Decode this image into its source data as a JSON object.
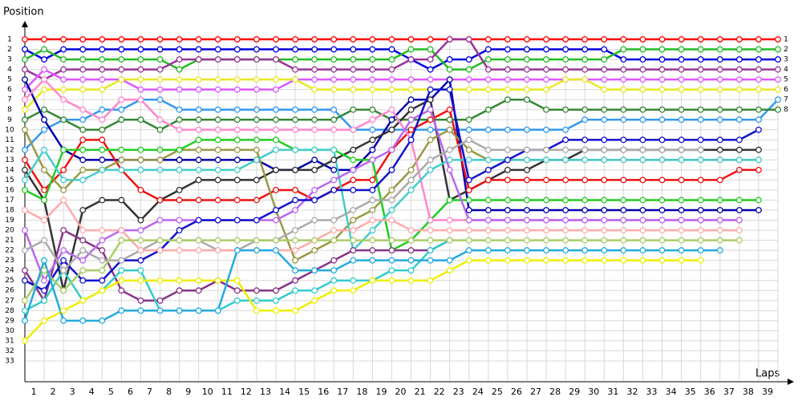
{
  "chart_data": {
    "type": "line",
    "y_label": "Position",
    "x_label": "Laps",
    "x": [
      0,
      1,
      2,
      3,
      4,
      5,
      6,
      7,
      8,
      9,
      10,
      11,
      12,
      13,
      14,
      15,
      16,
      17,
      18,
      19,
      20,
      21,
      22,
      23,
      24,
      25,
      26,
      27,
      28,
      29,
      30,
      31,
      32,
      33,
      34,
      35,
      36,
      37,
      38,
      39
    ],
    "xlim": [
      0,
      39
    ],
    "xticks": [
      1,
      2,
      3,
      4,
      5,
      6,
      7,
      8,
      9,
      10,
      11,
      12,
      13,
      14,
      15,
      16,
      17,
      18,
      19,
      20,
      21,
      22,
      23,
      24,
      25,
      26,
      27,
      28,
      29,
      30,
      31,
      32,
      33,
      34,
      35,
      36,
      37,
      38,
      39
    ],
    "ylim": [
      0,
      35
    ],
    "y_inverted": true,
    "yticks": [
      1,
      2,
      3,
      4,
      5,
      6,
      7,
      8,
      9,
      10,
      11,
      12,
      13,
      14,
      15,
      16,
      17,
      18,
      19,
      20,
      21,
      22,
      23,
      24,
      25,
      26,
      27,
      28,
      29,
      30,
      31,
      32,
      33
    ],
    "y2lim": [
      0,
      35
    ],
    "y2ticks": [
      1,
      2,
      3,
      4,
      5,
      6,
      7,
      8
    ],
    "grid": true,
    "series": [
      {
        "color": "#ff0000",
        "values": [
          1,
          1,
          1,
          1,
          1,
          1,
          1,
          1,
          1,
          1,
          1,
          1,
          1,
          1,
          1,
          1,
          1,
          1,
          1,
          1,
          1,
          1,
          1,
          1,
          1,
          1,
          1,
          1,
          1,
          1,
          1,
          1,
          1,
          1,
          1,
          1,
          1,
          1,
          1,
          1
        ]
      },
      {
        "color": "#0000dd",
        "values": [
          2,
          3,
          2,
          2,
          2,
          2,
          2,
          2,
          2,
          2,
          2,
          2,
          2,
          2,
          2,
          2,
          2,
          2,
          2,
          2,
          3,
          4,
          3,
          3,
          2,
          2,
          2,
          2,
          2,
          2,
          2,
          3,
          3,
          3,
          3,
          3,
          3,
          3,
          3,
          3
        ]
      },
      {
        "color": "#22bb22",
        "values": [
          3,
          2,
          3,
          3,
          3,
          3,
          3,
          3,
          4,
          3,
          3,
          3,
          3,
          3,
          3,
          3,
          3,
          3,
          3,
          3,
          2,
          2,
          4,
          4,
          3,
          3,
          3,
          3,
          3,
          3,
          3,
          2,
          2,
          2,
          2,
          2,
          2,
          2,
          2,
          2
        ]
      },
      {
        "color": "#993399",
        "values": [
          4,
          5,
          4,
          4,
          4,
          4,
          4,
          4,
          3,
          3,
          3,
          3,
          3,
          3,
          4,
          4,
          4,
          4,
          4,
          4,
          3,
          3,
          1,
          1,
          4,
          4,
          4,
          4,
          4,
          4,
          4,
          4,
          4,
          4,
          4,
          4,
          4,
          4,
          4,
          4
        ]
      },
      {
        "color": "#dd55ff",
        "values": [
          6,
          4,
          5,
          5,
          5,
          5,
          6,
          6,
          6,
          6,
          6,
          6,
          6,
          6,
          5,
          5,
          5,
          5,
          5,
          5,
          5,
          5,
          5,
          5,
          5,
          5,
          5,
          5,
          5,
          5,
          5,
          5,
          5,
          5,
          5,
          5,
          5,
          5,
          5,
          5
        ]
      },
      {
        "color": "#e8e822",
        "values": [
          8,
          6,
          6,
          6,
          6,
          5,
          5,
          5,
          5,
          5,
          5,
          5,
          5,
          5,
          5,
          6,
          6,
          6,
          6,
          6,
          6,
          6,
          6,
          6,
          6,
          6,
          6,
          6,
          5,
          5,
          6,
          6,
          6,
          6,
          6,
          6,
          6,
          6,
          6,
          6
        ]
      },
      {
        "color": "#3399ee",
        "values": [
          12,
          10,
          9,
          9,
          8,
          8,
          7,
          7,
          8,
          8,
          8,
          8,
          8,
          8,
          8,
          8,
          8,
          10,
          10,
          10,
          10,
          10,
          10,
          10,
          10,
          10,
          10,
          10,
          10,
          9,
          9,
          9,
          9,
          9,
          9,
          9,
          9,
          9,
          9,
          7
        ]
      },
      {
        "color": "#338833",
        "values": [
          9,
          8,
          9,
          10,
          10,
          9,
          9,
          10,
          9,
          9,
          9,
          9,
          9,
          9,
          9,
          9,
          9,
          8,
          8,
          9,
          9,
          9,
          9,
          9,
          8,
          7,
          7,
          8,
          8,
          8,
          8,
          8,
          8,
          8,
          8,
          8,
          8,
          8,
          8,
          8
        ]
      },
      {
        "color": "#0000aa",
        "values": [
          5,
          9,
          12,
          13,
          13,
          13,
          13,
          13,
          13,
          13,
          13,
          13,
          13,
          14,
          14,
          13,
          14,
          14,
          12,
          9,
          7,
          7,
          5,
          18,
          18,
          18,
          18,
          18,
          18,
          18,
          18,
          18,
          18,
          18,
          18,
          18,
          18,
          18,
          18,
          null
        ]
      },
      {
        "color": "#333333",
        "values": [
          14,
          17,
          26,
          18,
          17,
          17,
          19,
          17,
          16,
          15,
          15,
          15,
          15,
          14,
          14,
          14,
          13,
          12,
          11,
          10,
          8,
          7,
          17,
          16,
          15,
          14,
          14,
          13,
          13,
          12,
          12,
          12,
          12,
          12,
          12,
          12,
          12,
          12,
          12,
          null
        ]
      },
      {
        "color": "#ee1111",
        "values": [
          13,
          16,
          14,
          11,
          11,
          14,
          16,
          17,
          17,
          17,
          17,
          17,
          17,
          16,
          16,
          17,
          16,
          15,
          15,
          12,
          10,
          9,
          8,
          16,
          15,
          15,
          15,
          15,
          15,
          15,
          15,
          15,
          15,
          15,
          15,
          15,
          15,
          14,
          14,
          null
        ]
      },
      {
        "color": "#999944",
        "values": [
          10,
          14,
          16,
          14,
          14,
          13,
          13,
          13,
          12,
          12,
          12,
          12,
          12,
          18,
          23,
          22,
          21,
          19,
          18,
          16,
          14,
          11,
          10,
          12,
          13,
          13,
          13,
          13,
          13,
          13,
          13,
          13,
          13,
          13,
          13,
          13,
          13,
          13,
          13,
          null
        ]
      },
      {
        "color": "#22cc22",
        "values": [
          16,
          17,
          12,
          12,
          12,
          12,
          12,
          12,
          12,
          11,
          11,
          11,
          11,
          11,
          12,
          12,
          12,
          13,
          13,
          22,
          21,
          19,
          17,
          17,
          17,
          17,
          17,
          17,
          17,
          17,
          17,
          17,
          17,
          17,
          17,
          17,
          17,
          17,
          17,
          null
        ]
      },
      {
        "color": "#ff88cc",
        "values": [
          7,
          5,
          7,
          8,
          9,
          7,
          7,
          9,
          10,
          10,
          10,
          10,
          10,
          10,
          10,
          10,
          10,
          10,
          9,
          8,
          11,
          19,
          19,
          19,
          19,
          19,
          19,
          19,
          19,
          19,
          19,
          19,
          19,
          19,
          19,
          19,
          19,
          19,
          null,
          null
        ]
      },
      {
        "color": "#44cccc",
        "values": [
          15,
          12,
          15,
          15,
          14,
          14,
          14,
          14,
          14,
          14,
          14,
          14,
          13,
          12,
          12,
          12,
          12,
          22,
          20,
          18,
          16,
          14,
          13,
          13,
          13,
          13,
          13,
          13,
          13,
          13,
          13,
          13,
          13,
          13,
          13,
          13,
          13,
          13,
          13,
          null
        ]
      },
      {
        "color": "#883388",
        "values": [
          24,
          27,
          20,
          21,
          22,
          26,
          27,
          27,
          26,
          26,
          25,
          26,
          26,
          26,
          25,
          24,
          23,
          22,
          22,
          22,
          22,
          22,
          21,
          null,
          null,
          null,
          null,
          null,
          null,
          null,
          null,
          null,
          null,
          null,
          null,
          null,
          null,
          null,
          null,
          null
        ]
      },
      {
        "color": "#bb66ee",
        "values": [
          20,
          25,
          22,
          23,
          21,
          20,
          20,
          19,
          19,
          19,
          19,
          19,
          19,
          19,
          18,
          16,
          15,
          14,
          13,
          12,
          9,
          8,
          14,
          19,
          19,
          19,
          19,
          19,
          19,
          19,
          19,
          19,
          19,
          19,
          19,
          19,
          19,
          19,
          null,
          null
        ]
      },
      {
        "color": "#1111cc",
        "values": [
          25,
          26,
          23,
          25,
          25,
          23,
          23,
          22,
          20,
          19,
          19,
          19,
          19,
          18,
          17,
          17,
          16,
          16,
          16,
          14,
          11,
          6,
          6,
          15,
          14,
          13,
          12,
          12,
          11,
          11,
          11,
          11,
          11,
          11,
          11,
          11,
          11,
          11,
          10,
          null
        ]
      },
      {
        "color": "#33cccc",
        "values": [
          28,
          27,
          24,
          27,
          26,
          24,
          24,
          28,
          28,
          28,
          28,
          27,
          27,
          27,
          26,
          26,
          25,
          25,
          25,
          24,
          24,
          22,
          21,
          null,
          null,
          null,
          null,
          null,
          null,
          null,
          null,
          null,
          null,
          null,
          null,
          null,
          null,
          null,
          null,
          null
        ]
      },
      {
        "color": "#eeee00",
        "values": [
          31,
          29,
          28,
          27,
          26,
          25,
          25,
          25,
          25,
          25,
          25,
          25,
          28,
          28,
          28,
          27,
          26,
          26,
          25,
          25,
          25,
          25,
          24,
          23,
          23,
          23,
          23,
          23,
          23,
          23,
          23,
          23,
          23,
          23,
          23,
          23,
          null,
          null,
          null,
          null
        ]
      },
      {
        "color": "#aaaaaa",
        "values": [
          22,
          21,
          24,
          22,
          23,
          23,
          22,
          21,
          21,
          21,
          22,
          22,
          21,
          21,
          20,
          19,
          19,
          18,
          17,
          17,
          15,
          13,
          12,
          11,
          12,
          12,
          12,
          12,
          12,
          12,
          12,
          12,
          12,
          12,
          12,
          12,
          null,
          null,
          null,
          null
        ]
      },
      {
        "color": "#ffaaaa",
        "values": [
          18,
          19,
          17,
          20,
          20,
          20,
          22,
          22,
          22,
          22,
          22,
          22,
          22,
          22,
          22,
          21,
          20,
          20,
          19,
          19,
          20,
          20,
          20,
          20,
          20,
          20,
          20,
          20,
          20,
          20,
          20,
          20,
          20,
          20,
          20,
          20,
          20,
          20,
          null,
          null
        ]
      },
      {
        "color": "#aacc66",
        "values": [
          27,
          24,
          26,
          24,
          24,
          21,
          21,
          21,
          21,
          21,
          21,
          21,
          21,
          21,
          21,
          21,
          21,
          21,
          21,
          21,
          21,
          21,
          21,
          21,
          21,
          21,
          21,
          21,
          21,
          21,
          21,
          21,
          21,
          21,
          21,
          21,
          21,
          21,
          null,
          null
        ]
      },
      {
        "color": "#22aadd",
        "values": [
          29,
          23,
          29,
          29,
          29,
          28,
          28,
          28,
          28,
          28,
          28,
          22,
          22,
          22,
          24,
          24,
          24,
          23,
          23,
          23,
          23,
          23,
          23,
          22,
          22,
          22,
          22,
          22,
          22,
          22,
          22,
          22,
          22,
          22,
          22,
          22,
          22,
          null,
          null,
          null
        ]
      }
    ]
  }
}
